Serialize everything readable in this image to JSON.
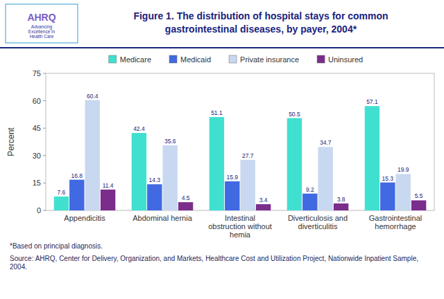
{
  "chart_data": {
    "type": "bar",
    "title": "Figure 1. The distribution of hospital stays for common\ngastrointestinal diseases, by payer, 2004*",
    "annotations": [
      "AHRQ",
      "Advancing\nExcellence in\nHealth Care",
      "*Based on principal diagnosis.",
      "Source: AHRQ, Center for Delivery, Organization, and Markets, Healthcare Cost and Utilization Project, Nationwide Inpatient Sample, 2004."
    ],
    "y_label": "Percent",
    "categories": [
      "Appendicitis",
      "Abdominal hernia",
      "Intestinal\nobstruction without\nhemia",
      "Diverticulosis and\ndiverticulitis",
      "Gastrointestinal\nhemorrhage"
    ],
    "series": [
      {
        "name": "Medicare",
        "color": "#40E0D0",
        "values": [
          7.6,
          42.4,
          51.1,
          50.5,
          57.1
        ]
      },
      {
        "name": "Medicaid",
        "color": "#4169E1",
        "values": [
          16.8,
          14.3,
          15.9,
          9.2,
          15.3
        ]
      },
      {
        "name": "Private insurance",
        "color": "#C8D8F0",
        "values": [
          60.4,
          35.6,
          27.7,
          34.7,
          19.9
        ]
      },
      {
        "name": "Uninsured",
        "color": "#7B2D8B",
        "values": [
          11.4,
          4.5,
          3.4,
          3.8,
          5.5
        ]
      }
    ],
    "ylim": [
      0,
      75
    ],
    "yticks": [
      0,
      15,
      30,
      45,
      60,
      75
    ],
    "grid": false,
    "legend": "top",
    "data_labels": true
  }
}
